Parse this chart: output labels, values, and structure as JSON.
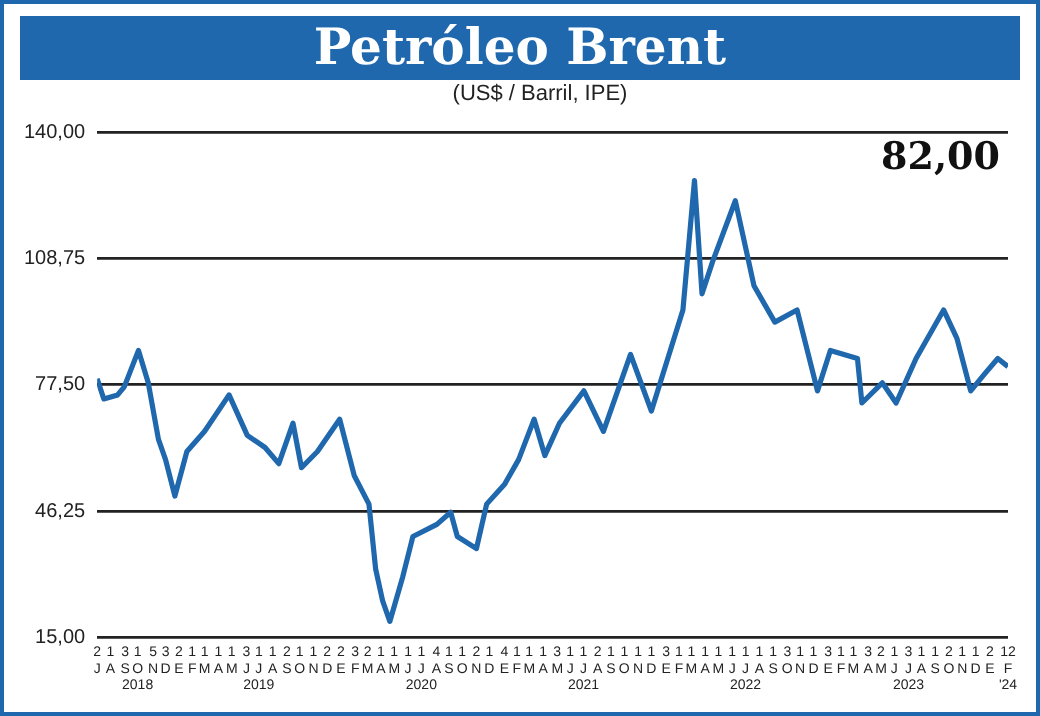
{
  "chart_data": {
    "type": "line",
    "title": "Petróleo Brent",
    "subtitle": "(US$ / Barril, IPE)",
    "annotations": [
      "82,00"
    ],
    "series": [
      {
        "color": "#1f68ad",
        "x": [
          "2018-07-02",
          "2018-07-17",
          "2018-08-17",
          "2018-09-01",
          "2018-10-03",
          "2018-10-25",
          "2018-11-17",
          "2018-12-03",
          "2018-12-24",
          "2019-01-20",
          "2019-03-01",
          "2019-04-25",
          "2019-06-05",
          "2019-07-15",
          "2019-08-15",
          "2019-09-16",
          "2019-10-05",
          "2019-11-10",
          "2019-12-30",
          "2020-02-01",
          "2020-03-05",
          "2020-03-20",
          "2020-04-05",
          "2020-04-21",
          "2020-05-20",
          "2020-06-12",
          "2020-08-05",
          "2020-09-05",
          "2020-09-20",
          "2020-11-02",
          "2020-11-25",
          "2021-01-05",
          "2021-02-05",
          "2021-03-12",
          "2021-04-05",
          "2021-05-08",
          "2021-07-02",
          "2021-08-15",
          "2021-10-15",
          "2021-12-01",
          "2022-02-10",
          "2022-03-08",
          "2022-03-25",
          "2022-04-18",
          "2022-06-08",
          "2022-07-20",
          "2022-09-05",
          "2022-10-25",
          "2022-12-10",
          "2023-01-08",
          "2023-03-10",
          "2023-03-20",
          "2023-05-05",
          "2023-06-05",
          "2023-07-20",
          "2023-09-20",
          "2023-10-20",
          "2023-11-20",
          "2023-12-20",
          "2024-01-20",
          "2024-02-12"
        ],
        "values": [
          79,
          74,
          75,
          77,
          86,
          78,
          64,
          59,
          50,
          61,
          66,
          75,
          65,
          62,
          58,
          68,
          57,
          61,
          69,
          55,
          48,
          32,
          24,
          19,
          30,
          40,
          43,
          46,
          40,
          37,
          48,
          53,
          59,
          69,
          60,
          68,
          76,
          66,
          85,
          71,
          96,
          128,
          100,
          108,
          123,
          102,
          93,
          96,
          76,
          86,
          84,
          73,
          78,
          73,
          84,
          96,
          89,
          76,
          80,
          84,
          82
        ]
      }
    ],
    "xlim": [
      "2018-07-02",
      "2024-02-12"
    ],
    "xticks": [
      {
        "value": "2018-07-02",
        "label": "2\nJ"
      },
      {
        "value": "2018-08-01",
        "label": "1\nA"
      },
      {
        "value": "2018-09-03",
        "label": "3\nS"
      },
      {
        "value": "2018-10-01",
        "label": "1\nO\n2018"
      },
      {
        "value": "2018-11-05",
        "label": "5\nN"
      },
      {
        "value": "2018-12-03",
        "label": "3\nD"
      },
      {
        "value": "2019-01-02",
        "label": "2\nE"
      },
      {
        "value": "2019-02-01",
        "label": "1\nF"
      },
      {
        "value": "2019-03-01",
        "label": "1\nM"
      },
      {
        "value": "2019-04-01",
        "label": "1\nA"
      },
      {
        "value": "2019-05-01",
        "label": "1\nM"
      },
      {
        "value": "2019-06-03",
        "label": "3\nJ"
      },
      {
        "value": "2019-07-01",
        "label": "1\nJ\n2019"
      },
      {
        "value": "2019-08-01",
        "label": "1\nA"
      },
      {
        "value": "2019-09-02",
        "label": "2\nS"
      },
      {
        "value": "2019-10-01",
        "label": "1\nO"
      },
      {
        "value": "2019-11-01",
        "label": "1\nN"
      },
      {
        "value": "2019-12-02",
        "label": "2\nD"
      },
      {
        "value": "2020-01-02",
        "label": "2\nE"
      },
      {
        "value": "2020-02-03",
        "label": "3\nF"
      },
      {
        "value": "2020-03-02",
        "label": "2\nM"
      },
      {
        "value": "2020-04-01",
        "label": "1\nA"
      },
      {
        "value": "2020-05-01",
        "label": "1\nM"
      },
      {
        "value": "2020-06-01",
        "label": "1\nJ"
      },
      {
        "value": "2020-07-01",
        "label": "1\nJ\n2020"
      },
      {
        "value": "2020-08-04",
        "label": "4\nA"
      },
      {
        "value": "2020-09-01",
        "label": "1\nS"
      },
      {
        "value": "2020-10-01",
        "label": "1\nO"
      },
      {
        "value": "2020-11-02",
        "label": "2\nN"
      },
      {
        "value": "2020-12-01",
        "label": "1\nD"
      },
      {
        "value": "2021-01-04",
        "label": "4\nE"
      },
      {
        "value": "2021-02-01",
        "label": "1\nF"
      },
      {
        "value": "2021-03-01",
        "label": "1\nM"
      },
      {
        "value": "2021-04-01",
        "label": "1\nA"
      },
      {
        "value": "2021-05-03",
        "label": "3\nM"
      },
      {
        "value": "2021-06-01",
        "label": "1\nJ"
      },
      {
        "value": "2021-07-01",
        "label": "1\nJ\n2021"
      },
      {
        "value": "2021-08-02",
        "label": "2\nA"
      },
      {
        "value": "2021-09-01",
        "label": "1\nS"
      },
      {
        "value": "2021-10-01",
        "label": "1\nO"
      },
      {
        "value": "2021-11-01",
        "label": "1\nN"
      },
      {
        "value": "2021-12-01",
        "label": "1\nD"
      },
      {
        "value": "2022-01-03",
        "label": "3\nE"
      },
      {
        "value": "2022-02-01",
        "label": "1\nF"
      },
      {
        "value": "2022-03-01",
        "label": "1\nM"
      },
      {
        "value": "2022-04-01",
        "label": "1\nA"
      },
      {
        "value": "2022-05-01",
        "label": "1\nM"
      },
      {
        "value": "2022-06-01",
        "label": "1\nJ"
      },
      {
        "value": "2022-07-01",
        "label": "1\nJ\n2022"
      },
      {
        "value": "2022-08-01",
        "label": "1\nA"
      },
      {
        "value": "2022-09-01",
        "label": "1\nS"
      },
      {
        "value": "2022-10-03",
        "label": "3\nO"
      },
      {
        "value": "2022-11-01",
        "label": "1\nN"
      },
      {
        "value": "2022-12-01",
        "label": "1\nD"
      },
      {
        "value": "2023-01-03",
        "label": "3\nE"
      },
      {
        "value": "2023-02-01",
        "label": "1\nF"
      },
      {
        "value": "2023-03-01",
        "label": "1\nM"
      },
      {
        "value": "2023-04-03",
        "label": "3\nA"
      },
      {
        "value": "2023-05-02",
        "label": "2\nM"
      },
      {
        "value": "2023-06-01",
        "label": "1\nJ"
      },
      {
        "value": "2023-07-03",
        "label": "3\nJ\n2023"
      },
      {
        "value": "2023-08-01",
        "label": "1\nA"
      },
      {
        "value": "2023-09-01",
        "label": "1\nS"
      },
      {
        "value": "2023-10-02",
        "label": "2\nO"
      },
      {
        "value": "2023-11-01",
        "label": "1\nN"
      },
      {
        "value": "2023-12-01",
        "label": "1\nD"
      },
      {
        "value": "2024-01-02",
        "label": "2\nE"
      },
      {
        "value": "2024-02-12",
        "label": "12\nF\n'24"
      }
    ],
    "ylim": [
      15,
      140
    ],
    "yticks": [
      {
        "value": 15,
        "label": "15,00"
      },
      {
        "value": 46.25,
        "label": "46,25"
      },
      {
        "value": 77.5,
        "label": "77,50"
      },
      {
        "value": 108.75,
        "label": "108,75"
      },
      {
        "value": 140,
        "label": "140,00"
      }
    ],
    "grid": "y",
    "marker": "none",
    "line_style": "solid"
  }
}
